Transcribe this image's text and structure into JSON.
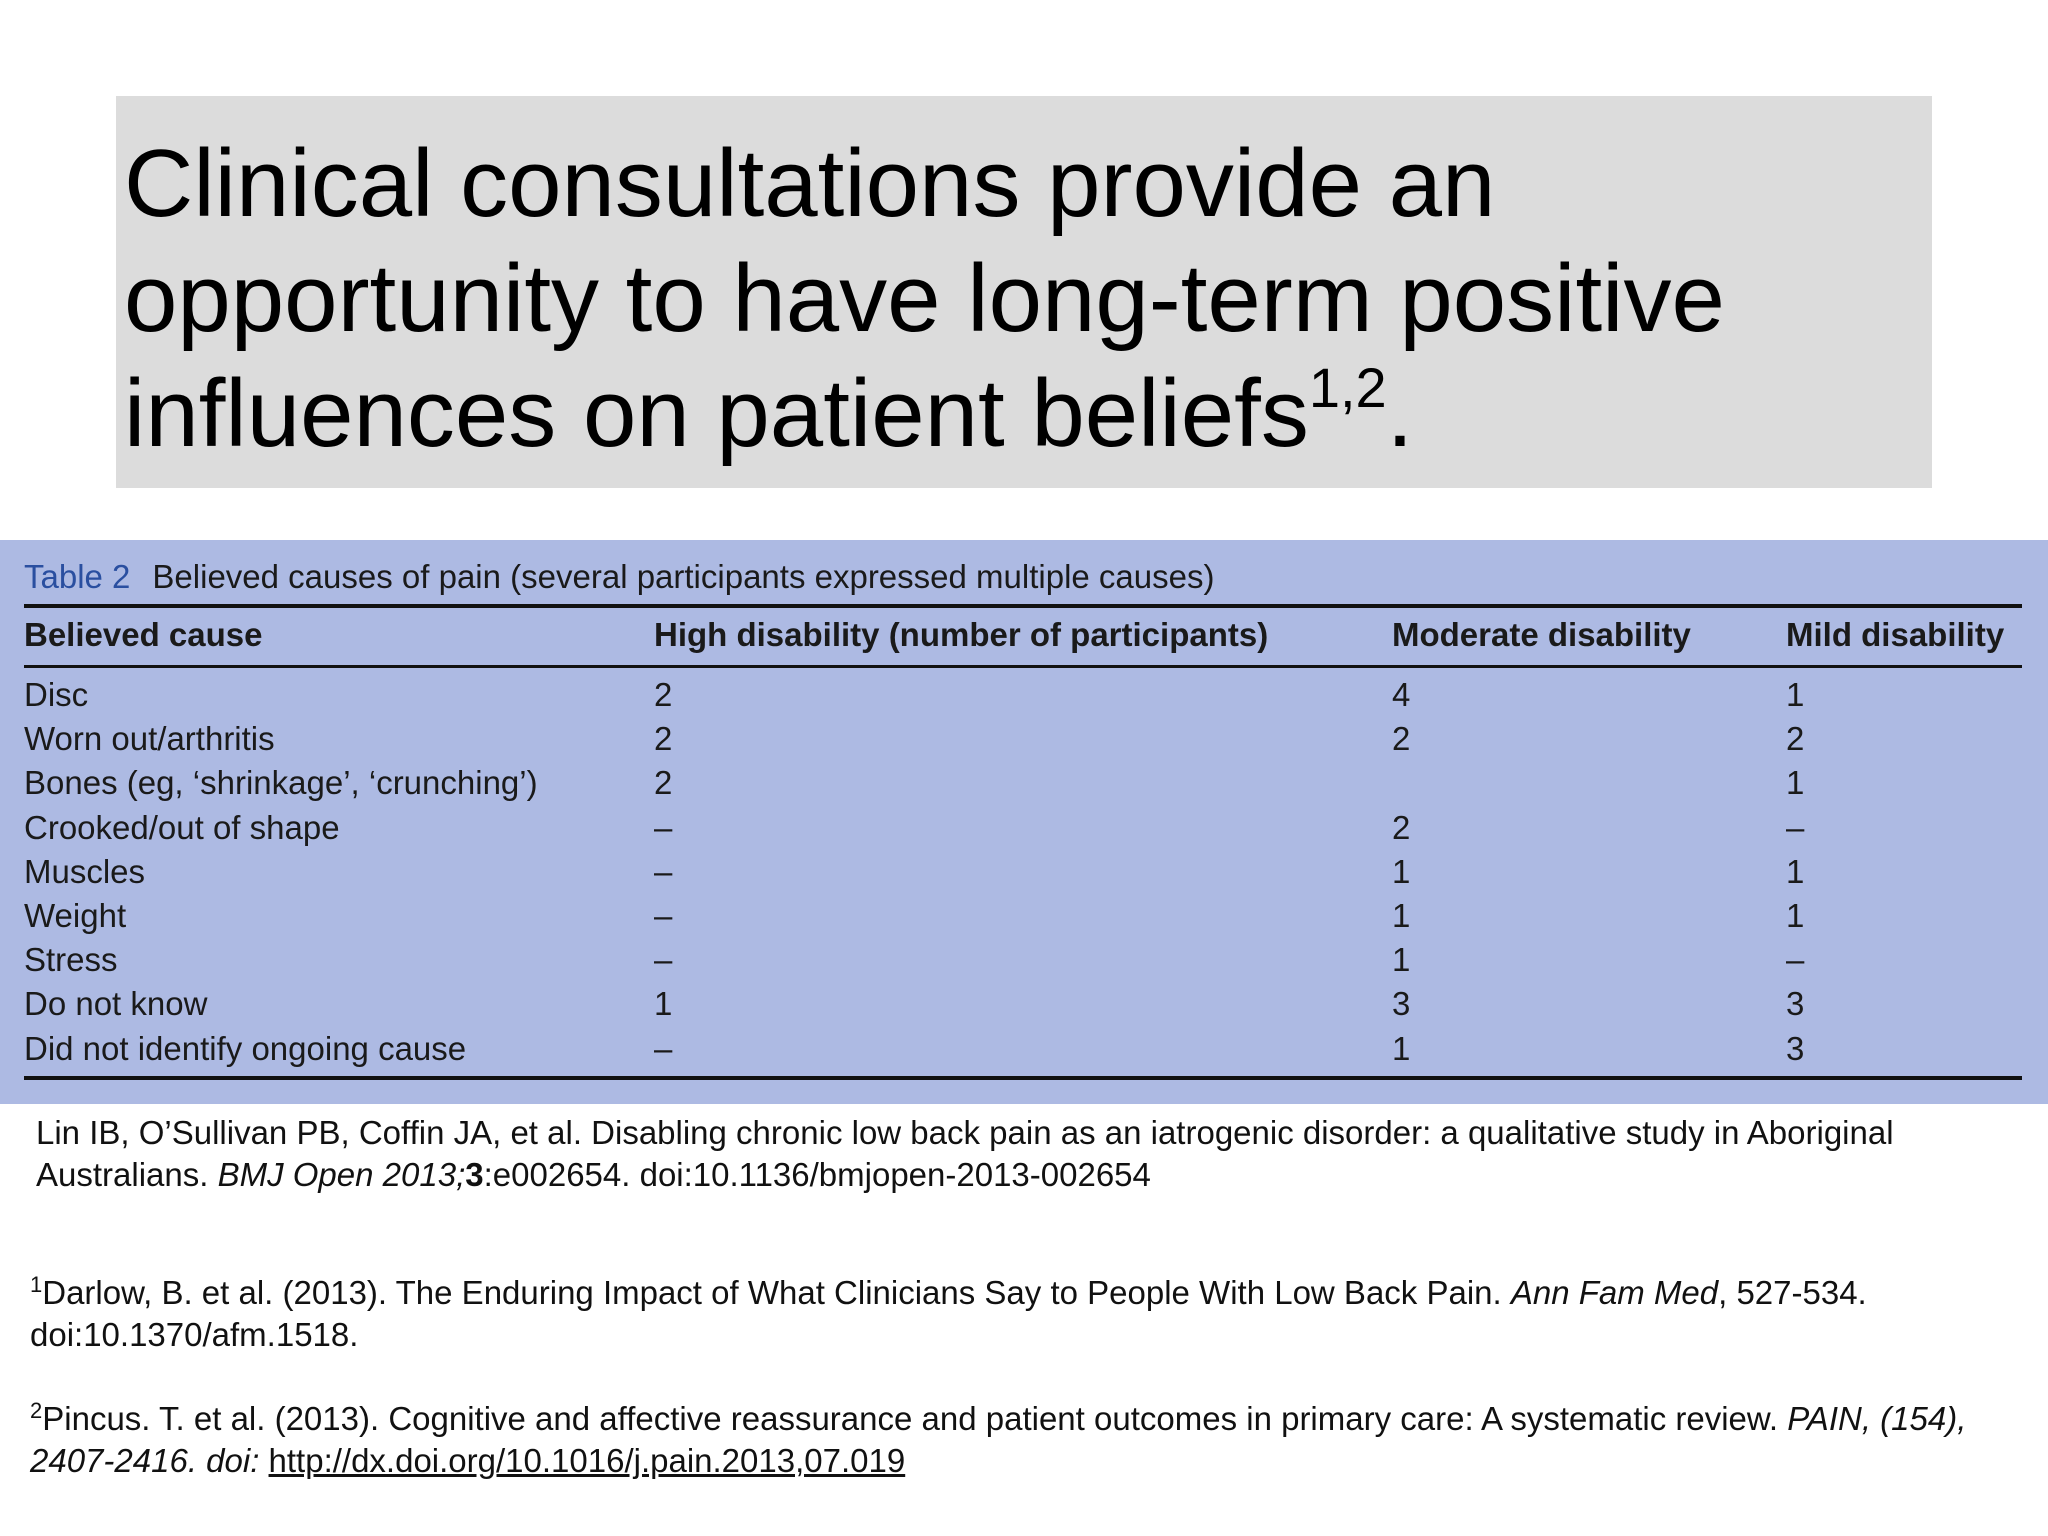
{
  "title": {
    "text": "Clinical consultations provide an opportunity to have long-term positive influences on patient beliefs",
    "superscript": "1,2",
    "end": "."
  },
  "table": {
    "tag": "Table 2",
    "caption": "Believed causes of pain (several participants expressed multiple causes)",
    "headers": [
      "Believed cause",
      "High disability (number of participants)",
      "Moderate disability",
      "Mild disability"
    ],
    "rows": [
      [
        "Disc",
        "2",
        "4",
        "1"
      ],
      [
        "Worn out/arthritis",
        "2",
        "2",
        "2"
      ],
      [
        "Bones (eg, ‘shrinkage’, ‘crunching’)",
        "2",
        "",
        "1"
      ],
      [
        "Crooked/out of shape",
        "–",
        "2",
        "–"
      ],
      [
        "Muscles",
        "–",
        "1",
        "1"
      ],
      [
        "Weight",
        "–",
        "1",
        "1"
      ],
      [
        "Stress",
        "–",
        "1",
        "–"
      ],
      [
        "Do not know",
        "1",
        "3",
        "3"
      ],
      [
        "Did not identify ongoing cause",
        "–",
        "1",
        "3"
      ]
    ]
  },
  "citation": {
    "authors_title": "Lin IB, O’Sullivan PB, Coffin JA, et al. Disabling chronic low back pain as an iatrogenic disorder: a qualitative study in Aboriginal Australians. ",
    "journal": "BMJ Open 2013;",
    "volume": "3",
    "rest": ":e002654. doi:10.1136/bmjopen-2013-002654"
  },
  "references": [
    {
      "number": "1",
      "text": "Darlow, B. et al. (2013). The Enduring Impact of What Clinicians Say to People With Low Back Pain. ",
      "journal": "Ann Fam Med",
      "rest": ", 527-534. doi:10.1370/afm.1518."
    },
    {
      "number": "2",
      "text": "Pincus. T. et al. (2013). Cognitive and affective reassurance and patient outcomes in primary care: A systematic review. ",
      "journal": "PAIN, (154), 2407-2416. doi: ",
      "link": "http://dx.doi.org/10.1016/j.pain.2013,07.019"
    }
  ],
  "colors": {
    "title_background": "#dcdcdc",
    "table_background": "#adbae3",
    "table_tag": "#2a4fa0"
  }
}
